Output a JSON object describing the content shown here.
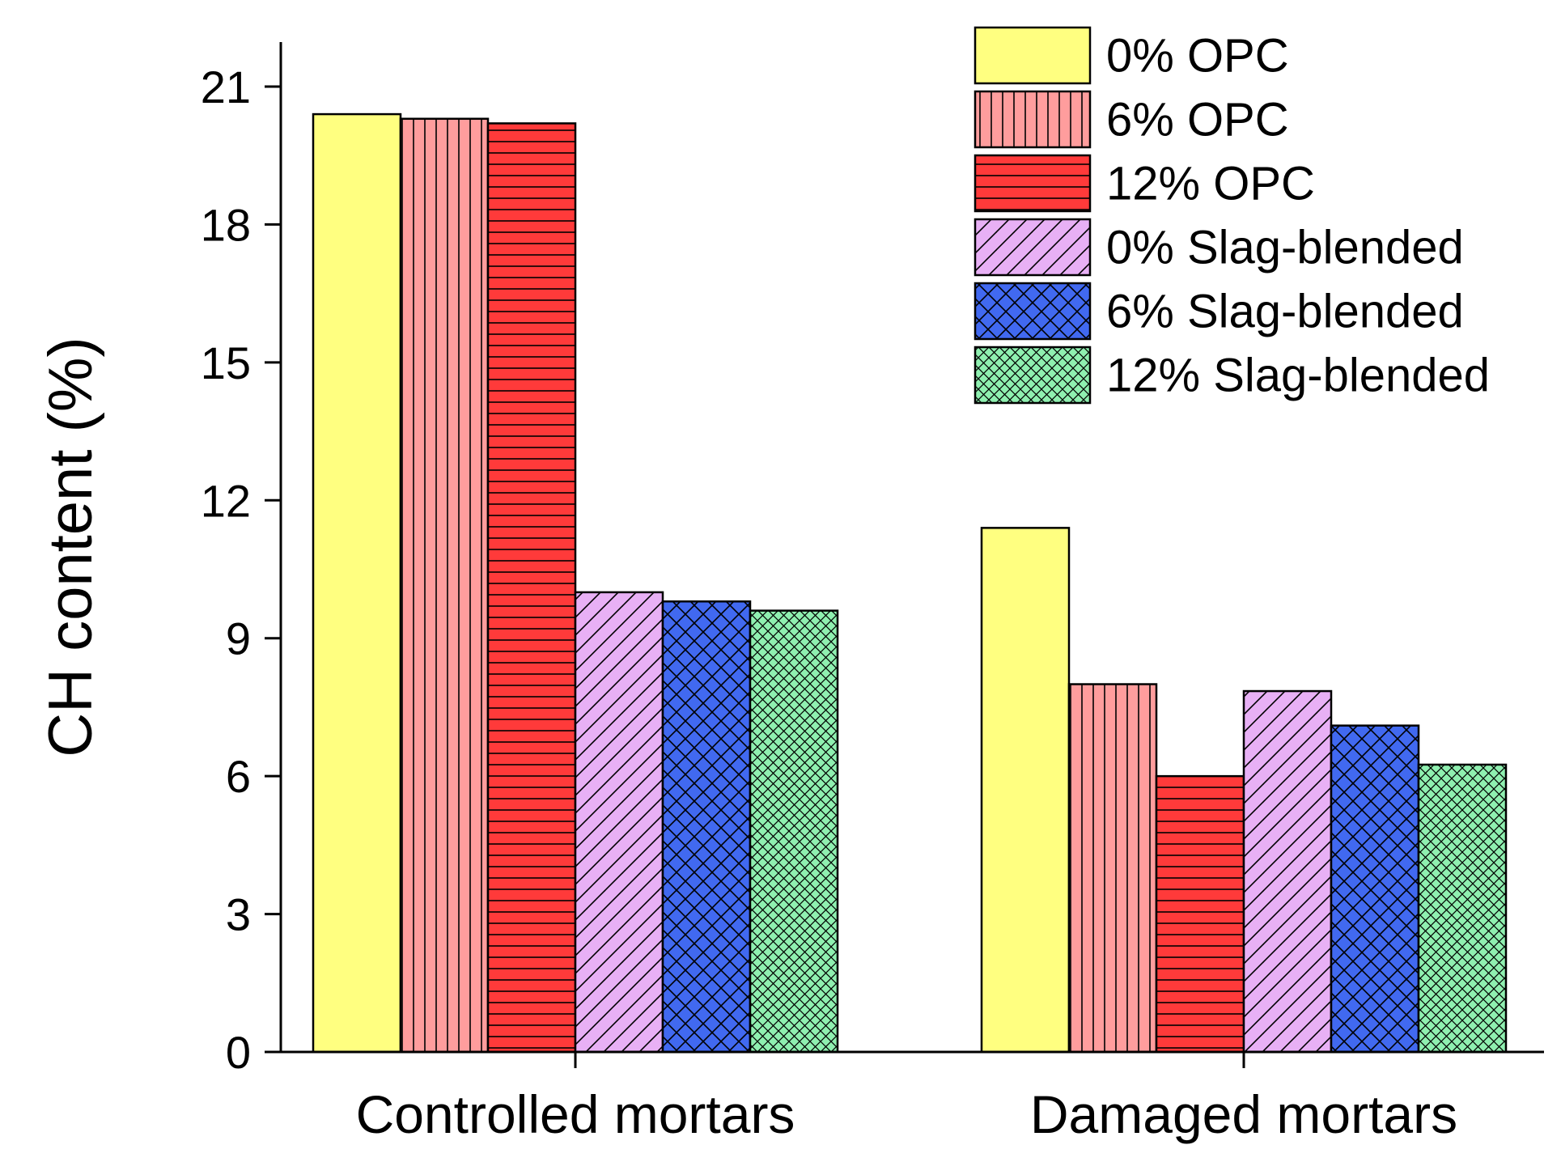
{
  "chart_data": {
    "type": "bar",
    "title": "",
    "xlabel": "",
    "ylabel": "CH content (%)",
    "ylim": [
      0,
      22
    ],
    "yticks": [
      0,
      3,
      6,
      9,
      12,
      15,
      18,
      21
    ],
    "categories": [
      "Controlled mortars",
      "Damaged mortars"
    ],
    "legend_position": "top-right",
    "grid": false,
    "series": [
      {
        "name": "0% OPC",
        "values": [
          20.4,
          11.4
        ],
        "color": "#ffff80",
        "pattern": "none"
      },
      {
        "name": "6% OPC",
        "values": [
          20.3,
          8.0
        ],
        "color": "#ff9d9d",
        "pattern": "vertical"
      },
      {
        "name": "12% OPC",
        "values": [
          20.2,
          6.0
        ],
        "color": "#ff3a3a",
        "pattern": "horizontal"
      },
      {
        "name": "0% Slag-blended",
        "values": [
          10.0,
          7.85
        ],
        "color": "#e8b0f5",
        "pattern": "diagonal"
      },
      {
        "name": "6% Slag-blended",
        "values": [
          9.8,
          7.1
        ],
        "color": "#4169f0",
        "pattern": "crosshatch"
      },
      {
        "name": "12% Slag-blended",
        "values": [
          9.6,
          6.25
        ],
        "color": "#8ff0b0",
        "pattern": "crosshatch-fine"
      }
    ]
  }
}
